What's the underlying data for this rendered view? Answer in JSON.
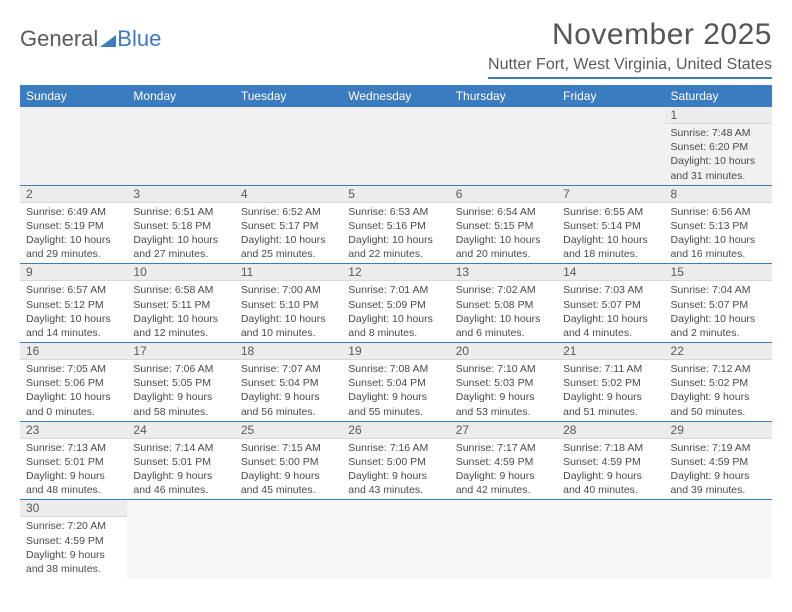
{
  "brand": {
    "part1": "General",
    "part2": "Blue"
  },
  "title": "November 2025",
  "location": "Nutter Fort, West Virginia, United States",
  "colors": {
    "accent": "#3b7bbf",
    "headerText": "#ffffff",
    "bodyText": "#4a4a4a",
    "bgAlt": "#ececec"
  },
  "weekdays": [
    "Sunday",
    "Monday",
    "Tuesday",
    "Wednesday",
    "Thursday",
    "Friday",
    "Saturday"
  ],
  "days": {
    "1": {
      "sunrise": "Sunrise: 7:48 AM",
      "sunset": "Sunset: 6:20 PM",
      "daylight": "Daylight: 10 hours and 31 minutes."
    },
    "2": {
      "sunrise": "Sunrise: 6:49 AM",
      "sunset": "Sunset: 5:19 PM",
      "daylight": "Daylight: 10 hours and 29 minutes."
    },
    "3": {
      "sunrise": "Sunrise: 6:51 AM",
      "sunset": "Sunset: 5:18 PM",
      "daylight": "Daylight: 10 hours and 27 minutes."
    },
    "4": {
      "sunrise": "Sunrise: 6:52 AM",
      "sunset": "Sunset: 5:17 PM",
      "daylight": "Daylight: 10 hours and 25 minutes."
    },
    "5": {
      "sunrise": "Sunrise: 6:53 AM",
      "sunset": "Sunset: 5:16 PM",
      "daylight": "Daylight: 10 hours and 22 minutes."
    },
    "6": {
      "sunrise": "Sunrise: 6:54 AM",
      "sunset": "Sunset: 5:15 PM",
      "daylight": "Daylight: 10 hours and 20 minutes."
    },
    "7": {
      "sunrise": "Sunrise: 6:55 AM",
      "sunset": "Sunset: 5:14 PM",
      "daylight": "Daylight: 10 hours and 18 minutes."
    },
    "8": {
      "sunrise": "Sunrise: 6:56 AM",
      "sunset": "Sunset: 5:13 PM",
      "daylight": "Daylight: 10 hours and 16 minutes."
    },
    "9": {
      "sunrise": "Sunrise: 6:57 AM",
      "sunset": "Sunset: 5:12 PM",
      "daylight": "Daylight: 10 hours and 14 minutes."
    },
    "10": {
      "sunrise": "Sunrise: 6:58 AM",
      "sunset": "Sunset: 5:11 PM",
      "daylight": "Daylight: 10 hours and 12 minutes."
    },
    "11": {
      "sunrise": "Sunrise: 7:00 AM",
      "sunset": "Sunset: 5:10 PM",
      "daylight": "Daylight: 10 hours and 10 minutes."
    },
    "12": {
      "sunrise": "Sunrise: 7:01 AM",
      "sunset": "Sunset: 5:09 PM",
      "daylight": "Daylight: 10 hours and 8 minutes."
    },
    "13": {
      "sunrise": "Sunrise: 7:02 AM",
      "sunset": "Sunset: 5:08 PM",
      "daylight": "Daylight: 10 hours and 6 minutes."
    },
    "14": {
      "sunrise": "Sunrise: 7:03 AM",
      "sunset": "Sunset: 5:07 PM",
      "daylight": "Daylight: 10 hours and 4 minutes."
    },
    "15": {
      "sunrise": "Sunrise: 7:04 AM",
      "sunset": "Sunset: 5:07 PM",
      "daylight": "Daylight: 10 hours and 2 minutes."
    },
    "16": {
      "sunrise": "Sunrise: 7:05 AM",
      "sunset": "Sunset: 5:06 PM",
      "daylight": "Daylight: 10 hours and 0 minutes."
    },
    "17": {
      "sunrise": "Sunrise: 7:06 AM",
      "sunset": "Sunset: 5:05 PM",
      "daylight": "Daylight: 9 hours and 58 minutes."
    },
    "18": {
      "sunrise": "Sunrise: 7:07 AM",
      "sunset": "Sunset: 5:04 PM",
      "daylight": "Daylight: 9 hours and 56 minutes."
    },
    "19": {
      "sunrise": "Sunrise: 7:08 AM",
      "sunset": "Sunset: 5:04 PM",
      "daylight": "Daylight: 9 hours and 55 minutes."
    },
    "20": {
      "sunrise": "Sunrise: 7:10 AM",
      "sunset": "Sunset: 5:03 PM",
      "daylight": "Daylight: 9 hours and 53 minutes."
    },
    "21": {
      "sunrise": "Sunrise: 7:11 AM",
      "sunset": "Sunset: 5:02 PM",
      "daylight": "Daylight: 9 hours and 51 minutes."
    },
    "22": {
      "sunrise": "Sunrise: 7:12 AM",
      "sunset": "Sunset: 5:02 PM",
      "daylight": "Daylight: 9 hours and 50 minutes."
    },
    "23": {
      "sunrise": "Sunrise: 7:13 AM",
      "sunset": "Sunset: 5:01 PM",
      "daylight": "Daylight: 9 hours and 48 minutes."
    },
    "24": {
      "sunrise": "Sunrise: 7:14 AM",
      "sunset": "Sunset: 5:01 PM",
      "daylight": "Daylight: 9 hours and 46 minutes."
    },
    "25": {
      "sunrise": "Sunrise: 7:15 AM",
      "sunset": "Sunset: 5:00 PM",
      "daylight": "Daylight: 9 hours and 45 minutes."
    },
    "26": {
      "sunrise": "Sunrise: 7:16 AM",
      "sunset": "Sunset: 5:00 PM",
      "daylight": "Daylight: 9 hours and 43 minutes."
    },
    "27": {
      "sunrise": "Sunrise: 7:17 AM",
      "sunset": "Sunset: 4:59 PM",
      "daylight": "Daylight: 9 hours and 42 minutes."
    },
    "28": {
      "sunrise": "Sunrise: 7:18 AM",
      "sunset": "Sunset: 4:59 PM",
      "daylight": "Daylight: 9 hours and 40 minutes."
    },
    "29": {
      "sunrise": "Sunrise: 7:19 AM",
      "sunset": "Sunset: 4:59 PM",
      "daylight": "Daylight: 9 hours and 39 minutes."
    },
    "30": {
      "sunrise": "Sunrise: 7:20 AM",
      "sunset": "Sunset: 4:59 PM",
      "daylight": "Daylight: 9 hours and 38 minutes."
    }
  },
  "layout": {
    "startWeekday": 6,
    "numDays": 30,
    "rows": 6
  }
}
